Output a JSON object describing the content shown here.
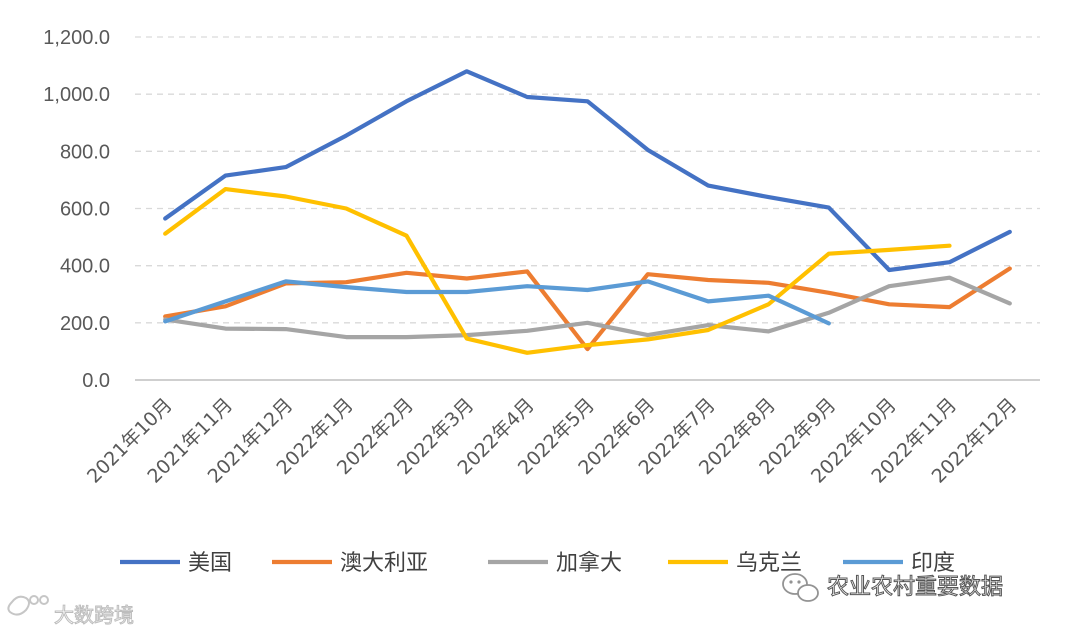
{
  "chart_data": {
    "type": "line",
    "title": "",
    "xlabel": "",
    "ylabel": "",
    "ylim": [
      0,
      1200
    ],
    "yticks": [
      "0.0",
      "200.0",
      "400.0",
      "600.0",
      "800.0",
      "1,000.0",
      "1,200.0"
    ],
    "ytick_values": [
      0,
      200,
      400,
      600,
      800,
      1000,
      1200
    ],
    "grid": "horizontal dashed",
    "legend_position": "bottom",
    "categories": [
      "2021年10月",
      "2021年11月",
      "2021年12月",
      "2022年1月",
      "2022年2月",
      "2022年3月",
      "2022年4月",
      "2022年5月",
      "2022年6月",
      "2022年7月",
      "2022年8月",
      "2022年9月",
      "2022年10月",
      "2022年11月",
      "2022年12月"
    ],
    "series": [
      {
        "name": "美国",
        "color": "#4472C4",
        "values": [
          565,
          715,
          745,
          855,
          975,
          1080,
          990,
          975,
          805,
          680,
          640,
          603,
          385,
          412,
          518
        ]
      },
      {
        "name": "澳大利亚",
        "color": "#ED7D31",
        "values": [
          222,
          258,
          338,
          342,
          375,
          355,
          380,
          108,
          370,
          350,
          340,
          305,
          265,
          255,
          390
        ]
      },
      {
        "name": "加拿大",
        "color": "#A5A5A5",
        "values": [
          212,
          180,
          178,
          150,
          150,
          157,
          172,
          200,
          157,
          192,
          170,
          235,
          328,
          358,
          268
        ]
      },
      {
        "name": "乌克兰",
        "color": "#FFC000",
        "values": [
          512,
          668,
          642,
          600,
          505,
          145,
          95,
          122,
          142,
          175,
          265,
          442,
          455,
          470,
          null
        ]
      },
      {
        "name": "印度",
        "color": "#5B9BD5",
        "values": [
          205,
          275,
          345,
          325,
          308,
          308,
          328,
          315,
          345,
          275,
          295,
          198,
          null,
          null,
          null
        ]
      }
    ]
  },
  "watermarks": {
    "left_text": "大数跨境",
    "right_text": "农业农村重要数据"
  }
}
